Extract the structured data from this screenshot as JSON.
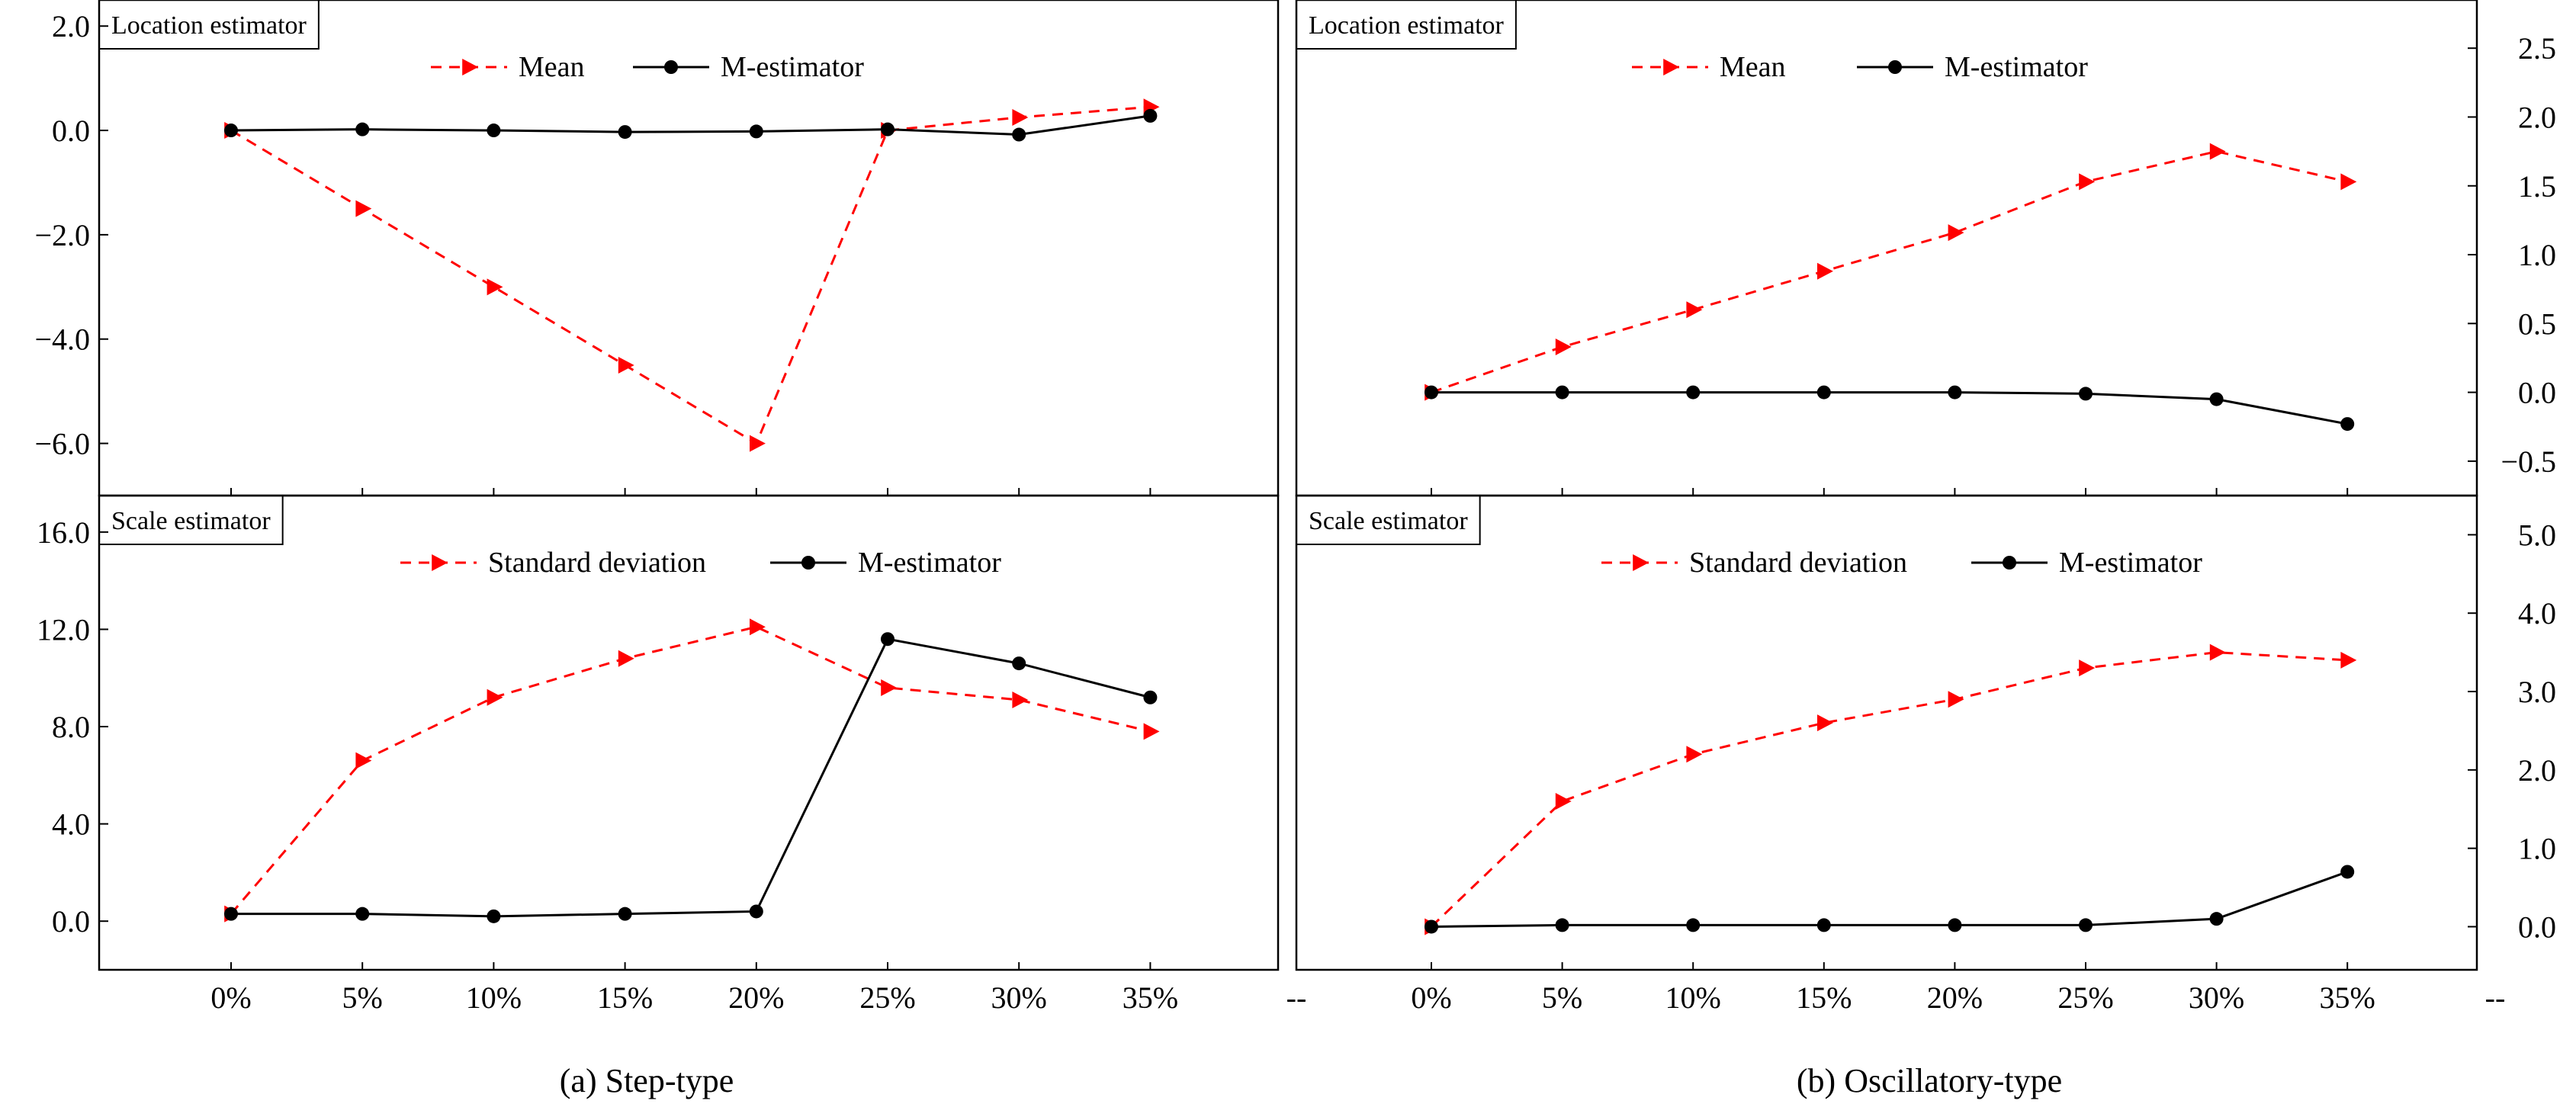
{
  "captions": {
    "left": "(a) Step-type",
    "right": "(b) Oscillatory-type"
  },
  "x_labels": [
    "0%",
    "5%",
    "10%",
    "15%",
    "20%",
    "25%",
    "30%",
    "35%"
  ],
  "x_trailing_label": "--",
  "colors": {
    "mean_series": "#ff0000",
    "m_series": "#000000",
    "axis": "#000000"
  },
  "chart_data": [
    {
      "id": "step-location",
      "type": "line",
      "panel_label": "Location estimator",
      "categories": [
        "0%",
        "5%",
        "10%",
        "15%",
        "20%",
        "25%",
        "30%",
        "35%"
      ],
      "ylim": [
        -7.0,
        2.5
      ],
      "yticks": [
        2.0,
        0.0,
        -2.0,
        -4.0,
        -6.0
      ],
      "ytick_labels": [
        "2.0",
        "0.0",
        "−2.0",
        "−4.0",
        "−6.0"
      ],
      "y_axis_side": "left",
      "legend_position": "top-center",
      "series": [
        {
          "name": "Mean",
          "style": "dashed-triangle",
          "values": [
            0.0,
            -1.5,
            -3.0,
            -4.5,
            -6.0,
            0.0,
            0.25,
            0.45
          ]
        },
        {
          "name": "M-estimator",
          "style": "solid-circle",
          "values": [
            0.0,
            0.02,
            0.0,
            -0.03,
            -0.02,
            0.02,
            -0.08,
            0.28
          ]
        }
      ]
    },
    {
      "id": "step-scale",
      "type": "line",
      "panel_label": "Scale estimator",
      "categories": [
        "0%",
        "5%",
        "10%",
        "15%",
        "20%",
        "25%",
        "30%",
        "35%"
      ],
      "ylim": [
        -2.0,
        17.5
      ],
      "yticks": [
        16.0,
        12.0,
        8.0,
        4.0,
        0.0
      ],
      "ytick_labels": [
        "16.0",
        "12.0",
        "8.0",
        "4.0",
        "0.0"
      ],
      "y_axis_side": "left",
      "legend_position": "top-center",
      "series": [
        {
          "name": "Standard deviation",
          "style": "dashed-triangle",
          "values": [
            0.3,
            6.6,
            9.2,
            10.8,
            12.1,
            9.6,
            9.1,
            7.8
          ]
        },
        {
          "name": "M-estimator",
          "style": "solid-circle",
          "values": [
            0.3,
            0.3,
            0.2,
            0.3,
            0.4,
            11.6,
            10.6,
            9.2
          ]
        }
      ]
    },
    {
      "id": "osc-location",
      "type": "line",
      "panel_label": "Location estimator",
      "categories": [
        "0%",
        "5%",
        "10%",
        "15%",
        "20%",
        "25%",
        "30%",
        "35%"
      ],
      "ylim": [
        -0.75,
        2.85
      ],
      "yticks": [
        2.5,
        2.0,
        1.5,
        1.0,
        0.5,
        0.0,
        -0.5
      ],
      "ytick_labels": [
        "2.5",
        "2.0",
        "1.5",
        "1.0",
        "0.5",
        "0.0",
        "−0.5"
      ],
      "y_axis_side": "right",
      "legend_position": "top-center",
      "series": [
        {
          "name": "Mean",
          "style": "dashed-triangle",
          "values": [
            0.0,
            0.33,
            0.6,
            0.88,
            1.16,
            1.53,
            1.75,
            1.53
          ]
        },
        {
          "name": "M-estimator",
          "style": "solid-circle",
          "values": [
            0.0,
            0.0,
            0.0,
            0.0,
            0.0,
            -0.01,
            -0.05,
            -0.23
          ]
        }
      ]
    },
    {
      "id": "osc-scale",
      "type": "line",
      "panel_label": "Scale estimator",
      "categories": [
        "0%",
        "5%",
        "10%",
        "15%",
        "20%",
        "25%",
        "30%",
        "35%"
      ],
      "ylim": [
        -0.55,
        5.5
      ],
      "yticks": [
        5.0,
        4.0,
        3.0,
        2.0,
        1.0,
        0.0
      ],
      "ytick_labels": [
        "5.0",
        "4.0",
        "3.0",
        "2.0",
        "1.0",
        "0.0"
      ],
      "y_axis_side": "right",
      "legend_position": "top-center",
      "series": [
        {
          "name": "Standard deviation",
          "style": "dashed-triangle",
          "values": [
            0.0,
            1.6,
            2.2,
            2.6,
            2.9,
            3.3,
            3.5,
            3.4
          ]
        },
        {
          "name": "M-estimator",
          "style": "solid-circle",
          "values": [
            0.0,
            0.02,
            0.02,
            0.02,
            0.02,
            0.02,
            0.1,
            0.7
          ]
        }
      ]
    }
  ]
}
